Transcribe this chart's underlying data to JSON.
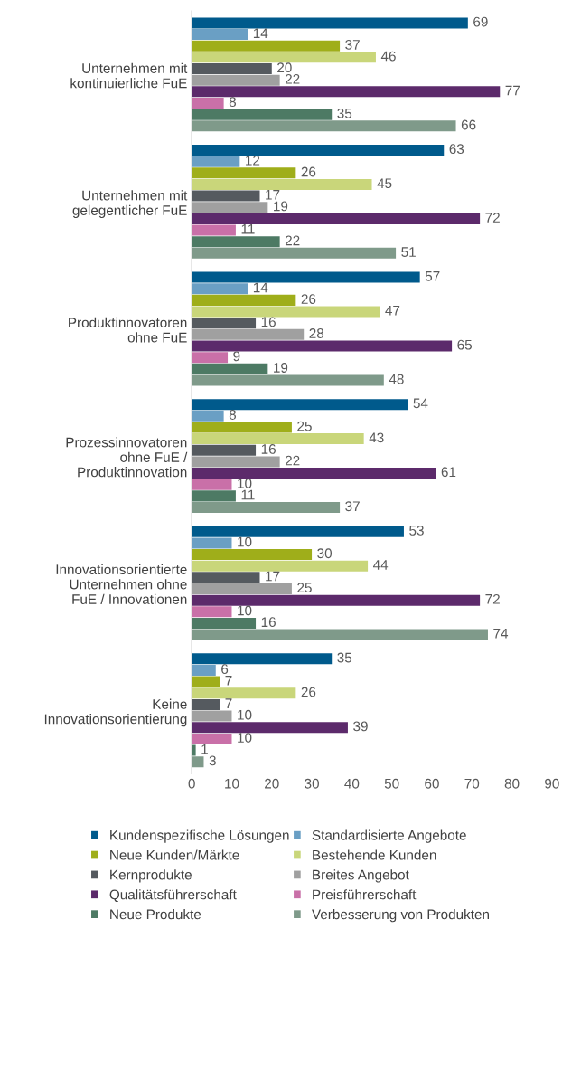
{
  "chart_data": {
    "type": "bar",
    "orientation": "horizontal",
    "categories": [
      "Unternehmen mit\nkontinuierliche FuE",
      "Unternehmen mit\ngelegentlicher FuE",
      "Produktinnovatoren\nohne FuE",
      "Prozessinnovatoren\nohne FuE /\nProduktinnovation",
      "Innovationsorientierte\nUnternehmen ohne\nFuE / Innovationen",
      "Keine\nInnovationsorientierung"
    ],
    "series": [
      {
        "name": "Kundenspezifische Lösungen",
        "color": "#005a8c",
        "values": [
          69,
          63,
          57,
          54,
          53,
          35
        ]
      },
      {
        "name": "Standardisierte Angebote",
        "color": "#6a9fc4",
        "values": [
          14,
          12,
          14,
          8,
          10,
          6
        ]
      },
      {
        "name": "Neue Kunden/Märkte",
        "color": "#9fae1a",
        "values": [
          37,
          26,
          26,
          25,
          30,
          7
        ]
      },
      {
        "name": "Bestehende Kunden",
        "color": "#c9d67a",
        "values": [
          46,
          45,
          47,
          43,
          44,
          26
        ]
      },
      {
        "name": "Kernprodukte",
        "color": "#555a5f",
        "values": [
          20,
          17,
          16,
          16,
          17,
          7
        ]
      },
      {
        "name": "Breites Angebot",
        "color": "#a0a0a0",
        "values": [
          22,
          19,
          28,
          22,
          25,
          10
        ]
      },
      {
        "name": "Qualitätsführerschaft",
        "color": "#5c2a6b",
        "values": [
          77,
          72,
          65,
          61,
          72,
          39
        ]
      },
      {
        "name": "Preisführerschaft",
        "color": "#c970a8",
        "values": [
          8,
          11,
          9,
          10,
          10,
          10
        ]
      },
      {
        "name": "Neue Produkte",
        "color": "#4d7a64",
        "values": [
          35,
          22,
          19,
          11,
          16,
          1
        ]
      },
      {
        "name": "Verbesserung von Produkten",
        "color": "#7f9a8a",
        "values": [
          66,
          51,
          48,
          37,
          74,
          3
        ]
      }
    ],
    "xlim": [
      0,
      90
    ],
    "xticks": [
      0,
      10,
      20,
      30,
      40,
      50,
      60,
      70,
      80,
      90
    ],
    "data_labels": true,
    "grid": false,
    "legend": "bottom"
  }
}
